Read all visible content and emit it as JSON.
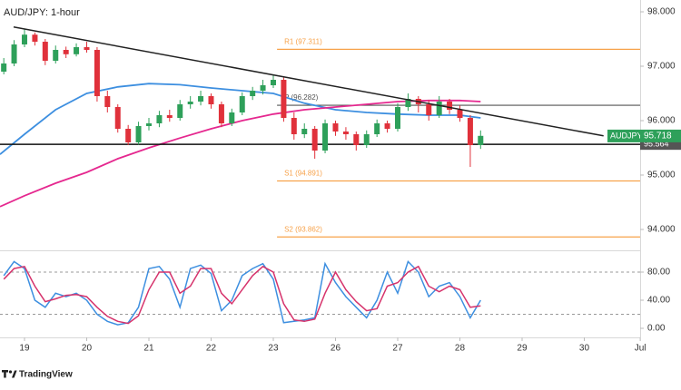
{
  "title": "AUD/JPY: 1-hour",
  "brand": "TradingView",
  "chart_data": [
    {
      "type": "candlestick",
      "xlim": [
        -0.394,
        9.898
      ],
      "xticks": [
        {
          "value": 0,
          "label": "19"
        },
        {
          "value": 1,
          "label": "20"
        },
        {
          "value": 2,
          "label": "21"
        },
        {
          "value": 3,
          "label": "22"
        },
        {
          "value": 4,
          "label": "23"
        },
        {
          "value": 5,
          "label": "26"
        },
        {
          "value": 6,
          "label": "27"
        },
        {
          "value": 7,
          "label": "28"
        },
        {
          "value": 8,
          "label": "29"
        },
        {
          "value": 9,
          "label": "30"
        },
        {
          "value": 9.9,
          "label": "Jul"
        }
      ],
      "ylim": [
        93.633,
        98.217
      ],
      "yticks": [
        {
          "value": 94,
          "label": "94.000"
        },
        {
          "value": 95,
          "label": "95.000"
        },
        {
          "value": 96,
          "label": "96.000"
        },
        {
          "value": 97,
          "label": "97.000"
        },
        {
          "value": 98,
          "label": "98.000"
        }
      ],
      "up_color": "#2ea05a",
      "down_color": "#e0313b",
      "x": [
        -0.333,
        -0.167,
        0,
        0.167,
        0.333,
        0.5,
        0.667,
        0.833,
        1,
        1.167,
        1.333,
        1.5,
        1.667,
        1.833,
        2,
        2.167,
        2.333,
        2.5,
        2.667,
        2.833,
        3,
        3.167,
        3.333,
        3.5,
        3.667,
        3.833,
        4,
        4.167,
        4.333,
        4.5,
        4.667,
        4.833,
        5,
        5.167,
        5.333,
        5.5,
        5.667,
        5.833,
        6,
        6.167,
        6.333,
        6.5,
        6.667,
        6.833,
        7,
        7.167,
        7.333
      ],
      "open": [
        96.9,
        97.05,
        97.4,
        97.58,
        97.45,
        97.1,
        97.3,
        97.22,
        97.35,
        97.3,
        96.45,
        96.25,
        95.85,
        95.6,
        95.9,
        95.95,
        96.1,
        96.05,
        96.3,
        96.35,
        96.45,
        96.3,
        95.95,
        96.15,
        96.45,
        96.55,
        96.65,
        96.75,
        96.05,
        95.75,
        95.85,
        95.45,
        95.95,
        95.8,
        95.75,
        95.55,
        95.75,
        95.95,
        95.85,
        96.25,
        96.4,
        96.3,
        96.1,
        96.35,
        96.2,
        96.05,
        95.55
      ],
      "high": [
        97.15,
        97.48,
        97.68,
        97.62,
        97.5,
        97.38,
        97.36,
        97.42,
        97.45,
        97.35,
        96.55,
        96.3,
        95.92,
        95.98,
        96.05,
        96.18,
        96.2,
        96.38,
        96.45,
        96.55,
        96.5,
        96.35,
        96.22,
        96.52,
        96.62,
        96.75,
        96.85,
        96.8,
        96.15,
        95.95,
        95.9,
        96.02,
        96.0,
        95.88,
        95.8,
        95.82,
        96.02,
        96.0,
        96.32,
        96.5,
        96.45,
        96.38,
        96.45,
        96.4,
        96.28,
        96.1,
        95.82
      ],
      "low": [
        96.85,
        97.0,
        97.35,
        97.38,
        97.02,
        97.05,
        97.15,
        97.18,
        97.25,
        96.35,
        96.15,
        95.78,
        95.55,
        95.56,
        95.82,
        95.88,
        95.98,
        96.0,
        96.22,
        96.28,
        96.22,
        95.88,
        95.9,
        96.1,
        96.38,
        96.48,
        96.6,
        95.98,
        95.65,
        95.68,
        95.3,
        95.4,
        95.72,
        95.65,
        95.45,
        95.5,
        95.7,
        95.78,
        95.8,
        96.18,
        96.15,
        96.0,
        96.05,
        96.12,
        95.98,
        95.15,
        95.48
      ],
      "close": [
        97.05,
        97.4,
        97.58,
        97.45,
        97.1,
        97.3,
        97.22,
        97.35,
        97.3,
        96.45,
        96.25,
        95.85,
        95.6,
        95.9,
        95.95,
        96.1,
        96.05,
        96.3,
        96.35,
        96.45,
        96.3,
        95.95,
        96.15,
        96.45,
        96.55,
        96.65,
        96.75,
        96.05,
        95.75,
        95.85,
        95.45,
        95.95,
        95.8,
        95.75,
        95.55,
        95.75,
        95.95,
        95.85,
        96.25,
        96.4,
        96.3,
        96.1,
        96.35,
        96.2,
        96.05,
        95.55,
        95.72
      ],
      "series": [
        {
          "color": "#3d8fe0",
          "x": [
            -0.394,
            0,
            0.5,
            1,
            1.5,
            2,
            2.5,
            3,
            3.5,
            4,
            4.5,
            5,
            5.5,
            6,
            6.5,
            7,
            7.333
          ],
          "values": [
            95.38,
            95.75,
            96.2,
            96.5,
            96.62,
            96.68,
            96.66,
            96.6,
            96.55,
            96.5,
            96.32,
            96.2,
            96.15,
            96.12,
            96.1,
            96.1,
            96.05
          ]
        },
        {
          "color": "#e5288f",
          "x": [
            -0.394,
            0,
            0.5,
            1,
            1.5,
            2,
            2.5,
            3,
            3.5,
            4,
            4.5,
            5,
            5.5,
            6,
            6.5,
            7,
            7.333
          ],
          "values": [
            94.42,
            94.62,
            94.85,
            95.05,
            95.3,
            95.5,
            95.68,
            95.85,
            96.0,
            96.12,
            96.2,
            96.25,
            96.3,
            96.35,
            96.37,
            96.37,
            96.35
          ]
        }
      ],
      "trendline": {
        "color": "#222222",
        "x": [
          -0.175,
          9.31
        ],
        "values": [
          97.72,
          95.72
        ]
      },
      "support": {
        "color": "#111111",
        "value": 95.564
      },
      "pivots": {
        "start": 4.06,
        "levels": [
          {
            "label": "R1 (97.311)",
            "value": 97.311,
            "color": "#f7a24a"
          },
          {
            "label": "P (96.282)",
            "value": 96.282,
            "color": "#555555"
          },
          {
            "label": "S1 (94.891)",
            "value": 94.891,
            "color": "#f7a24a"
          },
          {
            "label": "S2 (93.862)",
            "value": 93.862,
            "color": "#f7a24a"
          }
        ]
      },
      "price_tag": {
        "symbol": "AUDJPY",
        "value": 95.718,
        "color": "#2ea05a"
      }
    },
    {
      "type": "line",
      "ylim": [
        -12.9,
        108.4
      ],
      "yticks": [
        {
          "value": 80,
          "label": "80.00"
        },
        {
          "value": 40,
          "label": "40.00"
        },
        {
          "value": 0,
          "label": "0.00"
        }
      ],
      "bands": [
        20,
        80
      ],
      "series": [
        {
          "color": "#3d8fe0",
          "values": [
            75,
            95,
            85,
            40,
            30,
            50,
            45,
            50,
            40,
            20,
            10,
            5,
            8,
            30,
            85,
            88,
            70,
            30,
            85,
            90,
            78,
            25,
            40,
            75,
            85,
            92,
            70,
            8,
            10,
            12,
            15,
            92,
            65,
            45,
            30,
            15,
            40,
            80,
            50,
            95,
            80,
            45,
            60,
            65,
            45,
            15,
            40
          ]
        },
        {
          "color": "#d6336c",
          "values": [
            70,
            85,
            88,
            60,
            38,
            42,
            47,
            48,
            45,
            30,
            17,
            10,
            7,
            18,
            55,
            80,
            80,
            50,
            60,
            85,
            85,
            50,
            35,
            55,
            75,
            88,
            80,
            35,
            12,
            10,
            13,
            50,
            80,
            55,
            38,
            25,
            28,
            60,
            65,
            80,
            88,
            60,
            52,
            60,
            55,
            30,
            32
          ]
        }
      ]
    }
  ]
}
